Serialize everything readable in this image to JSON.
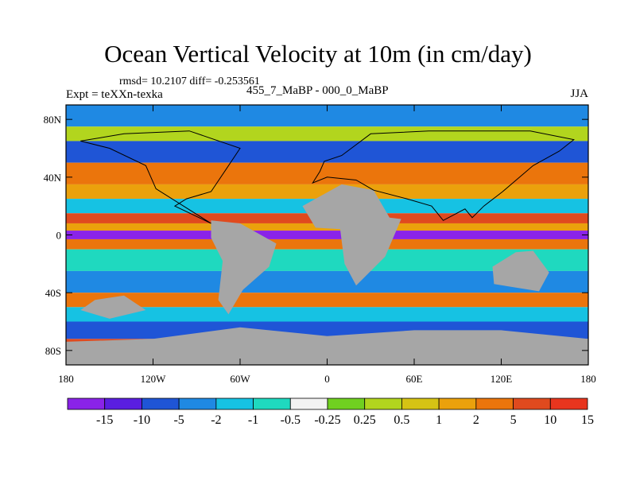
{
  "title": "Ocean Vertical Velocity at 10m (in cm/day)",
  "stats": "rmsd= 10.2107  diff= -0.253561",
  "experiment": "Expt = teXXn-texka",
  "experiment_names": "455_7_MaBP - 000_0_MaBP",
  "season": "JJA",
  "colors": {
    "land": "#a6a6a6",
    "frame": "#000000",
    "palette": [
      "#8a23e8",
      "#5a1ee0",
      "#1f55d6",
      "#1f89e3",
      "#16c2e3",
      "#1fd9bf",
      "#f2f2f2",
      "#70d020",
      "#b2d51e",
      "#d6c314",
      "#eba10c",
      "#eb750c",
      "#e04a1e",
      "#e8351e"
    ]
  },
  "chart_data": {
    "type": "heatmap",
    "projection": "cylindrical-equidistant",
    "x_range": [
      -180,
      180
    ],
    "y_range": [
      -90,
      90
    ],
    "x_ticks": [
      {
        "value": -180,
        "label": "180"
      },
      {
        "value": -120,
        "label": "120W"
      },
      {
        "value": -60,
        "label": "60W"
      },
      {
        "value": 0,
        "label": "0"
      },
      {
        "value": 60,
        "label": "60E"
      },
      {
        "value": 120,
        "label": "120E"
      },
      {
        "value": 180,
        "label": "180"
      }
    ],
    "y_ticks": [
      {
        "value": 80,
        "label": "80N"
      },
      {
        "value": 40,
        "label": "40N"
      },
      {
        "value": 0,
        "label": "0"
      },
      {
        "value": -40,
        "label": "40S"
      },
      {
        "value": -80,
        "label": "80S"
      }
    ],
    "colorbar": {
      "levels": [
        "-15",
        "-10",
        "-5",
        "-2",
        "-1",
        "-0.5",
        "-0.25",
        "0.25",
        "0.5",
        "1",
        "2",
        "5",
        "10",
        "15"
      ]
    },
    "field_bands": [
      {
        "lat_from": 90,
        "lat_to": 75,
        "level": "-2"
      },
      {
        "lat_from": 75,
        "lat_to": 65,
        "level": "0.5"
      },
      {
        "lat_from": 65,
        "lat_to": 50,
        "level": "-5"
      },
      {
        "lat_from": 50,
        "lat_to": 35,
        "level": "5"
      },
      {
        "lat_from": 35,
        "lat_to": 25,
        "level": "2"
      },
      {
        "lat_from": 25,
        "lat_to": 15,
        "level": "-1"
      },
      {
        "lat_from": 15,
        "lat_to": 8,
        "level": "10"
      },
      {
        "lat_from": 8,
        "lat_to": 3,
        "level": "2"
      },
      {
        "lat_from": 3,
        "lat_to": -3,
        "level": "-15"
      },
      {
        "lat_from": -3,
        "lat_to": -10,
        "level": "5"
      },
      {
        "lat_from": -10,
        "lat_to": -25,
        "level": "-0.5"
      },
      {
        "lat_from": -25,
        "lat_to": -40,
        "level": "-2"
      },
      {
        "lat_from": -40,
        "lat_to": -50,
        "level": "5"
      },
      {
        "lat_from": -50,
        "lat_to": -60,
        "level": "-1"
      },
      {
        "lat_from": -60,
        "lat_to": -72,
        "level": "-5"
      },
      {
        "lat_from": -72,
        "lat_to": -90,
        "level": "10"
      }
    ]
  }
}
